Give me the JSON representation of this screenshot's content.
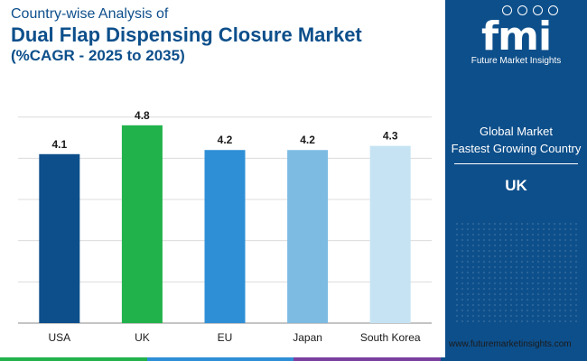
{
  "header": {
    "subtitle": "Country-wise Analysis of",
    "title": "Dual Flap Dispensing Closure Market",
    "cagr_note": "(%CAGR - 2025 to 2035)"
  },
  "chart_data": {
    "type": "bar",
    "categories": [
      "USA",
      "UK",
      "EU",
      "Japan",
      "South Korea"
    ],
    "values": [
      4.1,
      4.8,
      4.2,
      4.2,
      4.3
    ],
    "colors": [
      "#0d4f8b",
      "#22b24c",
      "#2e8fd6",
      "#7dbbe3",
      "#c5e3f3"
    ],
    "title": "",
    "xlabel": "",
    "ylabel": "",
    "ylim": [
      0,
      5.3
    ],
    "grid": true,
    "legend": "none"
  },
  "panel": {
    "logo_mark": "fmi",
    "logo_text": "Future Market Insights",
    "label_line1": "Global Market",
    "label_line2": "Fastest Growing Country",
    "value": "UK"
  },
  "footer": {
    "website": "www.futuremarketinsights.com",
    "stripe_colors": [
      "#22b24c",
      "#2e8fd6",
      "#7b3fa0",
      "#0d4f8b"
    ]
  }
}
